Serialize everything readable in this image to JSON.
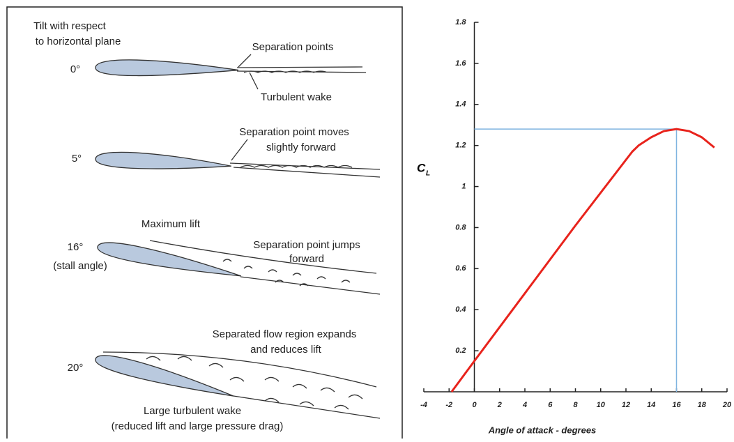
{
  "diagram": {
    "labels": [
      "Tilt with respect",
      "to horizontal plane",
      "0°",
      "Separation points",
      "Turbulent wake",
      "Separation point moves",
      "slightly forward",
      "5°",
      "Maximum lift",
      "16°",
      "(stall angle)",
      "Separation point jumps",
      "forward",
      "Separated flow region expands",
      "and reduces lift",
      "20°",
      "Large turbulent wake",
      "(reduced lift and large pressure drag)"
    ]
  },
  "chart_data": {
    "type": "line",
    "xlabel": "Angle of attack - degrees",
    "ylabel": "C",
    "ylabel_sub": "L",
    "x": [
      -1.8,
      0,
      4,
      8,
      12.5,
      13,
      14,
      15,
      16,
      17,
      18,
      19
    ],
    "series": [
      {
        "color": "#e8231c",
        "values": [
          0,
          0.15,
          0.48,
          0.81,
          1.17,
          1.2,
          1.24,
          1.27,
          1.28,
          1.27,
          1.24,
          1.19
        ]
      }
    ],
    "highlight": {
      "x": 16,
      "y": 1.28,
      "color": "#7fb4e0"
    },
    "xlim": [
      -4,
      20
    ],
    "xticks": [
      -4,
      -2,
      0,
      2,
      4,
      6,
      8,
      10,
      12,
      14,
      16,
      18,
      20
    ],
    "ylim": [
      0,
      1.8
    ],
    "yticks": [
      0.2,
      0.4,
      0.6,
      0.8,
      1.0,
      1.2,
      1.4,
      1.6,
      1.8
    ]
  }
}
